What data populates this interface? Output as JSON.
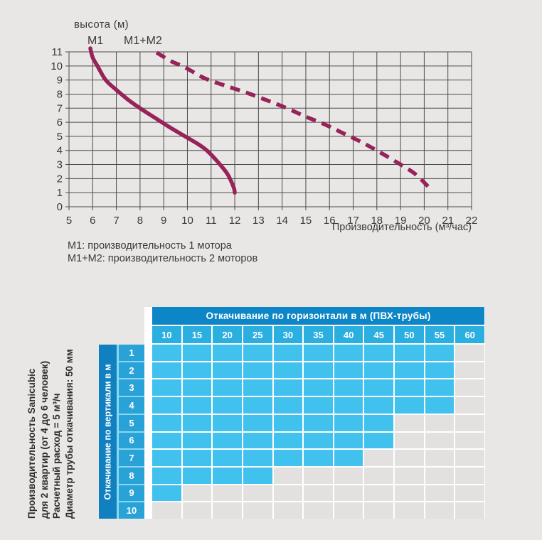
{
  "chart_data": [
    {
      "type": "line",
      "title": "",
      "xlabel": "Производительность (м³/час)",
      "ylabel": "высота (м)",
      "xlim": [
        5,
        22
      ],
      "ylim": [
        0,
        11
      ],
      "x_ticks": [
        5,
        6,
        7,
        8,
        9,
        10,
        11,
        12,
        13,
        14,
        15,
        16,
        17,
        18,
        19,
        20,
        21,
        22
      ],
      "y_ticks": [
        0,
        1,
        2,
        3,
        4,
        5,
        6,
        7,
        8,
        9,
        10,
        11
      ],
      "grid": true,
      "legend_position": "below-left",
      "series": [
        {
          "name": "M1",
          "legend_label": "M1: производительность 1 мотора",
          "style": "solid",
          "points": [
            [
              5.9,
              11.25
            ],
            [
              6.0,
              10.6
            ],
            [
              6.2,
              10.0
            ],
            [
              6.55,
              9.0
            ],
            [
              7.0,
              8.3
            ],
            [
              7.5,
              7.6
            ],
            [
              8.0,
              7.0
            ],
            [
              8.6,
              6.35
            ],
            [
              9.2,
              5.7
            ],
            [
              9.9,
              5.0
            ],
            [
              10.5,
              4.4
            ],
            [
              10.85,
              3.95
            ],
            [
              11.3,
              3.15
            ],
            [
              11.7,
              2.3
            ],
            [
              11.95,
              1.4
            ],
            [
              12.0,
              1.0
            ]
          ]
        },
        {
          "name": "M1+M2",
          "legend_label": "M1+M2: производительность 2 моторов",
          "style": "dashed",
          "points": [
            [
              8.7,
              10.95
            ],
            [
              9.3,
              10.35
            ],
            [
              9.9,
              9.9
            ],
            [
              10.7,
              9.15
            ],
            [
              11.6,
              8.6
            ],
            [
              12.5,
              8.1
            ],
            [
              13.3,
              7.6
            ],
            [
              14.2,
              7.0
            ],
            [
              15.0,
              6.4
            ],
            [
              15.8,
              5.85
            ],
            [
              16.6,
              5.2
            ],
            [
              17.4,
              4.55
            ],
            [
              18.2,
              3.8
            ],
            [
              19.0,
              3.0
            ],
            [
              19.6,
              2.35
            ],
            [
              20.1,
              1.55
            ],
            [
              20.3,
              1.1
            ]
          ]
        }
      ]
    },
    {
      "type": "table",
      "title": "Откачивание по горизонтали в м (ПВХ-трубы)",
      "row_axis_label": "Откачивание по вертикали в м",
      "columns": [
        "10",
        "15",
        "20",
        "25",
        "30",
        "35",
        "40",
        "45",
        "50",
        "55",
        "60"
      ],
      "rows": [
        "1",
        "2",
        "3",
        "4",
        "5",
        "6",
        "7",
        "8",
        "9",
        "10"
      ],
      "filled_counts": [
        10,
        10,
        10,
        10,
        8,
        8,
        7,
        4,
        1,
        0
      ]
    }
  ],
  "note": {
    "lines": [
      "Производительность Sanicubic",
      "для 2 квартир (от 4 до 6 человек)",
      "Расчетный расход = 5 м³/ч",
      "Диаметр трубы откачивания: 50 мм"
    ]
  },
  "colors": {
    "curve": "#96235a",
    "grid_line": "#4c4b49",
    "chart_text": "#3b3a38",
    "table_header_blue": "#0d86c7",
    "table_strip_blue": "#1080c1",
    "col_number_blue": "#2bafe1",
    "row_number_blue": "#29a2d8",
    "cell_filled_blue": "#41c2ee",
    "cell_empty_gray": "#e2e1df",
    "rail_gap_blue": "#8bd7ef",
    "page_bg": "#e9e7e5"
  }
}
